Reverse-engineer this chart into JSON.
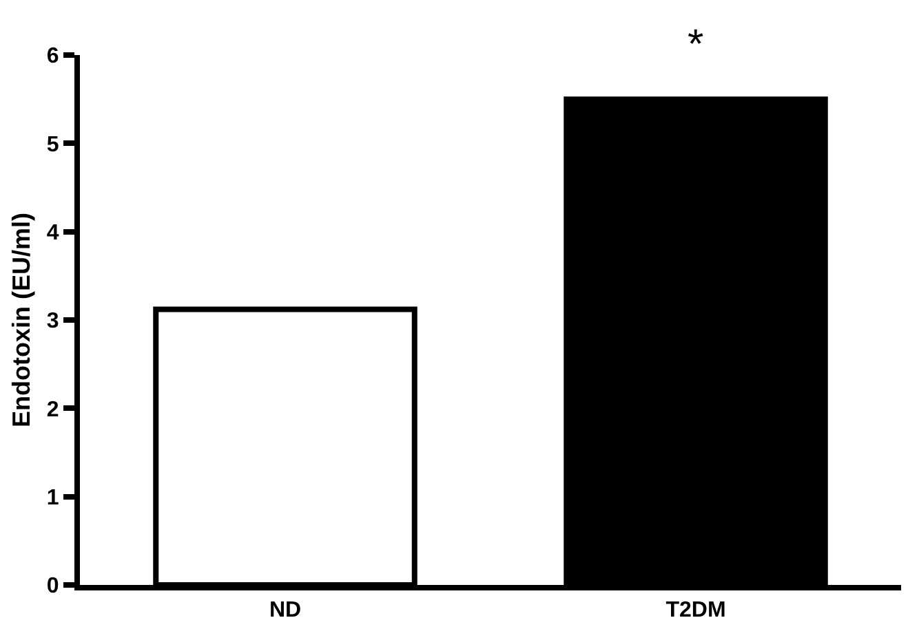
{
  "chart_data": {
    "type": "bar",
    "categories": [
      "ND",
      "T2DM"
    ],
    "values": [
      3.12,
      5.5
    ],
    "colors": [
      "#ffffff",
      "#000000"
    ],
    "ylabel": "Endotoxin (EU/ml)",
    "ylim": [
      0,
      6
    ],
    "yticks": [
      0,
      1,
      2,
      3,
      4,
      5,
      6
    ],
    "grid": false,
    "annotations": [
      "*"
    ]
  }
}
